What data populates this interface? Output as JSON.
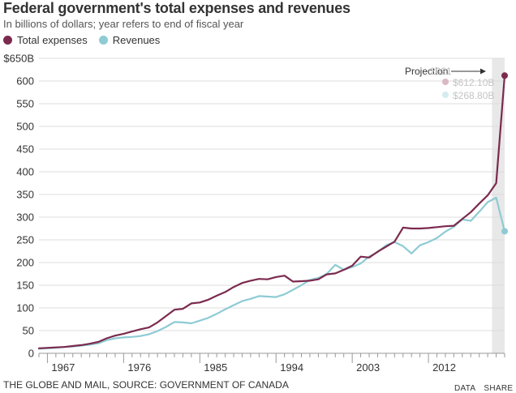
{
  "chart_data": {
    "type": "line",
    "title": "Federal government's total expenses and revenues",
    "subtitle": "In billions of dollars; year refers to end of fiscal year",
    "ylabel": "",
    "xlabel": "",
    "ylim": [
      0,
      650
    ],
    "xlim": [
      1966,
      2021
    ],
    "grid": true,
    "legend_position": "top-left",
    "yticks": [
      0,
      50,
      100,
      150,
      200,
      250,
      300,
      350,
      400,
      450,
      500,
      550,
      600,
      650
    ],
    "ytick_labels": [
      "0",
      "50",
      "100",
      "150",
      "200",
      "250",
      "300",
      "350",
      "400",
      "450",
      "500",
      "550",
      "600",
      "$650B"
    ],
    "xticks": [
      1967,
      1976,
      1985,
      1994,
      2003,
      2012
    ],
    "xtick_labels": [
      "1967",
      "1976",
      "1985",
      "1994",
      "2003",
      "2012"
    ],
    "projection": {
      "label": "Projection",
      "start_year": 2020,
      "end_year": 2021,
      "shade_color": "#e8e8e8",
      "tooltip_year": "2021",
      "tooltip_expenses": "$612.10B",
      "tooltip_revenues": "$268.80B"
    },
    "series": [
      {
        "name": "Total expenses",
        "color": "#7b2a4e",
        "x": [
          1966,
          1967,
          1968,
          1969,
          1970,
          1971,
          1972,
          1973,
          1974,
          1975,
          1976,
          1977,
          1978,
          1979,
          1980,
          1981,
          1982,
          1983,
          1984,
          1985,
          1986,
          1987,
          1988,
          1989,
          1990,
          1991,
          1992,
          1993,
          1994,
          1995,
          1996,
          1997,
          1998,
          1999,
          2000,
          2001,
          2002,
          2003,
          2004,
          2005,
          2006,
          2007,
          2008,
          2009,
          2010,
          2011,
          2012,
          2013,
          2014,
          2015,
          2016,
          2017,
          2018,
          2019,
          2020,
          2021
        ],
        "values": [
          11,
          12,
          13,
          14,
          16,
          18,
          21,
          25,
          33,
          39,
          43,
          48,
          53,
          57,
          68,
          82,
          96,
          98,
          110,
          112,
          118,
          127,
          135,
          146,
          155,
          160,
          164,
          163,
          168,
          171,
          158,
          159,
          160,
          163,
          174,
          176,
          184,
          193,
          213,
          211,
          224,
          235,
          246,
          277,
          275,
          275,
          276,
          278,
          280,
          281,
          296,
          311,
          330,
          348,
          375,
          612
        ]
      },
      {
        "name": "Revenues",
        "color": "#8ecbd4",
        "x": [
          1966,
          1967,
          1968,
          1969,
          1970,
          1971,
          1972,
          1973,
          1974,
          1975,
          1976,
          1977,
          1978,
          1979,
          1980,
          1981,
          1982,
          1983,
          1984,
          1985,
          1986,
          1987,
          1988,
          1989,
          1990,
          1991,
          1992,
          1993,
          1994,
          1995,
          1996,
          1997,
          1998,
          1999,
          2000,
          2001,
          2002,
          2003,
          2004,
          2005,
          2006,
          2007,
          2008,
          2009,
          2010,
          2011,
          2012,
          2013,
          2014,
          2015,
          2016,
          2017,
          2018,
          2019,
          2020,
          2021
        ],
        "values": [
          10,
          11,
          12,
          14,
          15,
          17,
          19,
          22,
          29,
          33,
          35,
          36,
          38,
          42,
          49,
          58,
          69,
          68,
          66,
          72,
          78,
          87,
          97,
          106,
          115,
          120,
          126,
          125,
          124,
          130,
          140,
          150,
          162,
          166,
          175,
          195,
          184,
          190,
          198,
          213,
          223,
          238,
          245,
          236,
          220,
          238,
          245,
          254,
          268,
          279,
          295,
          292,
          312,
          333,
          343,
          269
        ]
      }
    ],
    "legend": [
      "Total expenses",
      "Revenues"
    ]
  },
  "footer": {
    "source": "THE GLOBE AND MAIL, SOURCE: GOVERNMENT OF CANADA",
    "data_link": "DATA",
    "share_link": "SHARE"
  }
}
